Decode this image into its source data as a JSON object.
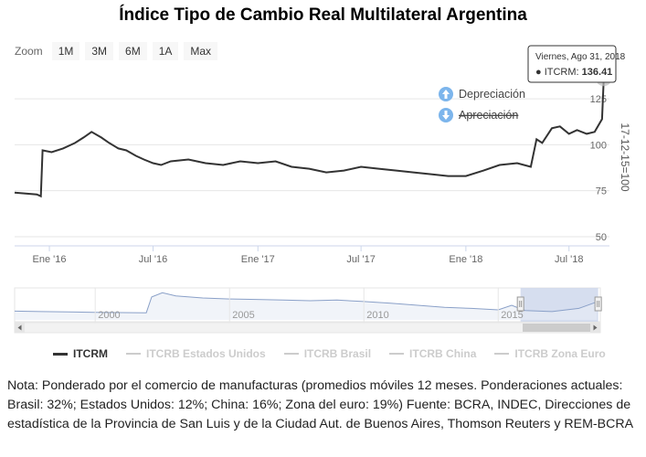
{
  "title": "Índice Tipo de Cambio Real Multilateral Argentina",
  "zoom": {
    "label": "Zoom",
    "buttons": [
      "1M",
      "3M",
      "6M",
      "1A",
      "Max"
    ]
  },
  "tooltip": {
    "date": "Viernes, Ago 31, 2018",
    "series": "ITCRM",
    "value_text": "136.41"
  },
  "annotations": {
    "depreciation": "Depreciación",
    "appreciation": "Apreciación"
  },
  "colors": {
    "line": "#333333",
    "navigator_fill": "#e8edf5",
    "navigator_line": "#8aa0c8",
    "navigator_mask": "#ccd6eb",
    "annotation_icon": "#7cb5ec"
  },
  "chart_data": {
    "type": "line",
    "ylabel": "17-12-15=100",
    "ylim": [
      45,
      140
    ],
    "yticks": [
      50,
      75,
      100,
      125
    ],
    "xticks": [
      "Ene '16",
      "Jul '16",
      "Ene '17",
      "Jul '17",
      "Ene '18",
      "Jul '18"
    ],
    "series": [
      {
        "name": "ITCRM",
        "x": [
          "2015-11-01",
          "2015-12-10",
          "2015-12-17",
          "2015-12-20",
          "2016-01-05",
          "2016-01-25",
          "2016-02-15",
          "2016-03-01",
          "2016-03-15",
          "2016-04-01",
          "2016-04-15",
          "2016-05-01",
          "2016-05-15",
          "2016-06-01",
          "2016-06-15",
          "2016-07-01",
          "2016-07-15",
          "2016-08-01",
          "2016-09-01",
          "2016-10-01",
          "2016-11-01",
          "2016-12-01",
          "2017-01-01",
          "2017-02-01",
          "2017-03-01",
          "2017-04-01",
          "2017-05-01",
          "2017-06-01",
          "2017-07-01",
          "2017-08-01",
          "2017-09-01",
          "2017-10-01",
          "2017-11-01",
          "2017-12-01",
          "2018-01-01",
          "2018-02-01",
          "2018-03-01",
          "2018-04-01",
          "2018-04-25",
          "2018-05-05",
          "2018-05-15",
          "2018-06-01",
          "2018-06-15",
          "2018-07-01",
          "2018-07-15",
          "2018-08-01",
          "2018-08-15",
          "2018-08-28",
          "2018-08-31"
        ],
        "values": [
          74,
          73,
          72,
          97,
          96,
          98,
          101,
          104,
          107,
          104,
          101,
          98,
          97,
          94,
          92,
          90,
          89,
          91,
          92,
          90,
          89,
          91,
          90,
          91,
          88,
          87,
          85,
          86,
          88,
          87,
          86,
          85,
          84,
          83,
          83,
          86,
          89,
          90,
          88,
          103,
          101,
          109,
          110,
          106,
          108,
          106,
          107,
          114,
          136.41
        ]
      }
    ],
    "navigator": {
      "xticks": [
        "2000",
        "2005",
        "2010",
        "2015"
      ],
      "series": {
        "x": [
          1997,
          1998,
          1999,
          2000,
          2001,
          2001.9,
          2002.1,
          2002.5,
          2003,
          2004,
          2005,
          2006,
          2007,
          2008,
          2009,
          2010,
          2011,
          2012,
          2013,
          2014,
          2015,
          2015.5,
          2016,
          2017,
          2018,
          2018.67
        ],
        "values": [
          92,
          90,
          88,
          86,
          85,
          84,
          160,
          180,
          165,
          155,
          150,
          148,
          145,
          142,
          145,
          138,
          130,
          120,
          110,
          105,
          98,
          120,
          95,
          90,
          105,
          136
        ]
      }
    },
    "legend": [
      {
        "name": "ITCRM",
        "active": true
      },
      {
        "name": "ITCRB Estados Unidos",
        "active": false
      },
      {
        "name": "ITCRB Brasil",
        "active": false
      },
      {
        "name": "ITCRB China",
        "active": false
      },
      {
        "name": "ITCRB Zona Euro",
        "active": false
      }
    ]
  },
  "note": "Nota: Ponderado por el comercio de manufacturas (promedios móviles 12 meses. Ponderaciones actuales: Brasil: 32%; Estados Unidos: 12%; China: 16%; Zona del euro: 19%) Fuente: BCRA, INDEC, Direcciones de estadística de la Provincia de San Luis y de la Ciudad Aut. de Buenos Aires, Thomson Reuters y REM-BCRA"
}
